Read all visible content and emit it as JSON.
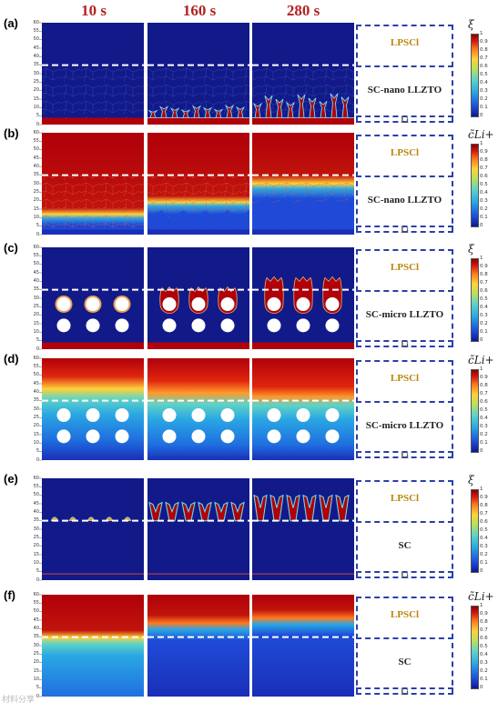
{
  "column_titles": [
    "10 s",
    "160 s",
    "280 s"
  ],
  "panels": [
    {
      "id": "a",
      "label": "(a)",
      "field": "phase",
      "cbar_title": "ξ",
      "sep": "SC-nano LLZTO"
    },
    {
      "id": "b",
      "label": "(b)",
      "field": "conc",
      "cbar_title": "c̃Li+",
      "sep": "SC-nano LLZTO"
    },
    {
      "id": "c",
      "label": "(c)",
      "field": "phase",
      "cbar_title": "ξ",
      "sep": "SC-micro LLZTO"
    },
    {
      "id": "d",
      "label": "(d)",
      "field": "conc",
      "cbar_title": "c̃Li+",
      "sep": "SC-micro LLZTO"
    },
    {
      "id": "e",
      "label": "(e)",
      "field": "phase",
      "cbar_title": "ξ",
      "sep": "SC"
    },
    {
      "id": "f",
      "label": "(f)",
      "field": "conc",
      "cbar_title": "c̃Li+",
      "sep": "SC"
    }
  ],
  "schematic": {
    "top_label": "LPSCl",
    "bottom_label": "Li"
  },
  "y_ticks": [
    "60",
    "55",
    "50",
    "45",
    "40",
    "35",
    "30",
    "25",
    "20",
    "15",
    "10",
    "5",
    "0"
  ],
  "colorbar_ticks": [
    "1",
    "0.9",
    "0.8",
    "0.7",
    "0.6",
    "0.5",
    "0.4",
    "0.3",
    "0.2",
    "0.1",
    "0"
  ],
  "colors": {
    "navy": "#121a8a",
    "red": "#b0000a",
    "dashed": "#2b3fa8",
    "title": "#b22222",
    "gold": "#b8860b"
  },
  "watermark": "材料分享"
}
